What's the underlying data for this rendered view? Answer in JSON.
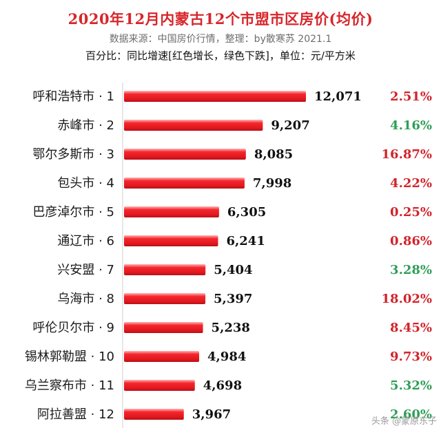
{
  "chart_data": {
    "type": "bar",
    "orientation": "horizontal",
    "title": "2020年12月内蒙古12个市盟市区房价(均价)",
    "subtitle": "数据来源：中国房价行情，整理：by散寒苏 2021.1",
    "note": "百分比：同比增速[红色增长，绿色下跌]，单位：元/平方米",
    "categories": [
      "呼和浩特市 · 1",
      "赤峰市 · 2",
      "鄂尔多斯市 · 3",
      "包头市 · 4",
      "巴彦淖尔市 · 5",
      "通辽市 · 6",
      "兴安盟 · 7",
      "乌海市 · 8",
      "呼伦贝尔市 · 9",
      "锡林郭勒盟 · 10",
      "乌兰察布市 · 11",
      "阿拉善盟 · 12"
    ],
    "values": [
      12071,
      9207,
      8085,
      7998,
      6305,
      6241,
      5404,
      5397,
      5238,
      4984,
      4698,
      3967
    ],
    "value_labels": [
      "12,071",
      "9,207",
      "8,085",
      "7,998",
      "6,305",
      "6,241",
      "5,404",
      "5,397",
      "5,238",
      "4,984",
      "4,698",
      "3,967"
    ],
    "growth_labels": [
      "2.51%",
      "4.16%",
      "16.87%",
      "4.22%",
      "0.25%",
      "0.86%",
      "3.28%",
      "18.02%",
      "8.45%",
      "9.73%",
      "5.32%",
      "2.60%"
    ],
    "growth_direction": [
      "up",
      "down",
      "up",
      "up",
      "up",
      "up",
      "down",
      "up",
      "up",
      "up",
      "down",
      "down"
    ],
    "xlim": [
      0,
      12071
    ],
    "grid": false,
    "legend": "none"
  },
  "colors": {
    "title": "#d7262b",
    "bar": "#f5262c",
    "increase": "#d2232a",
    "decrease": "#2e9e57"
  },
  "watermark": "头条 @蒙原东子"
}
